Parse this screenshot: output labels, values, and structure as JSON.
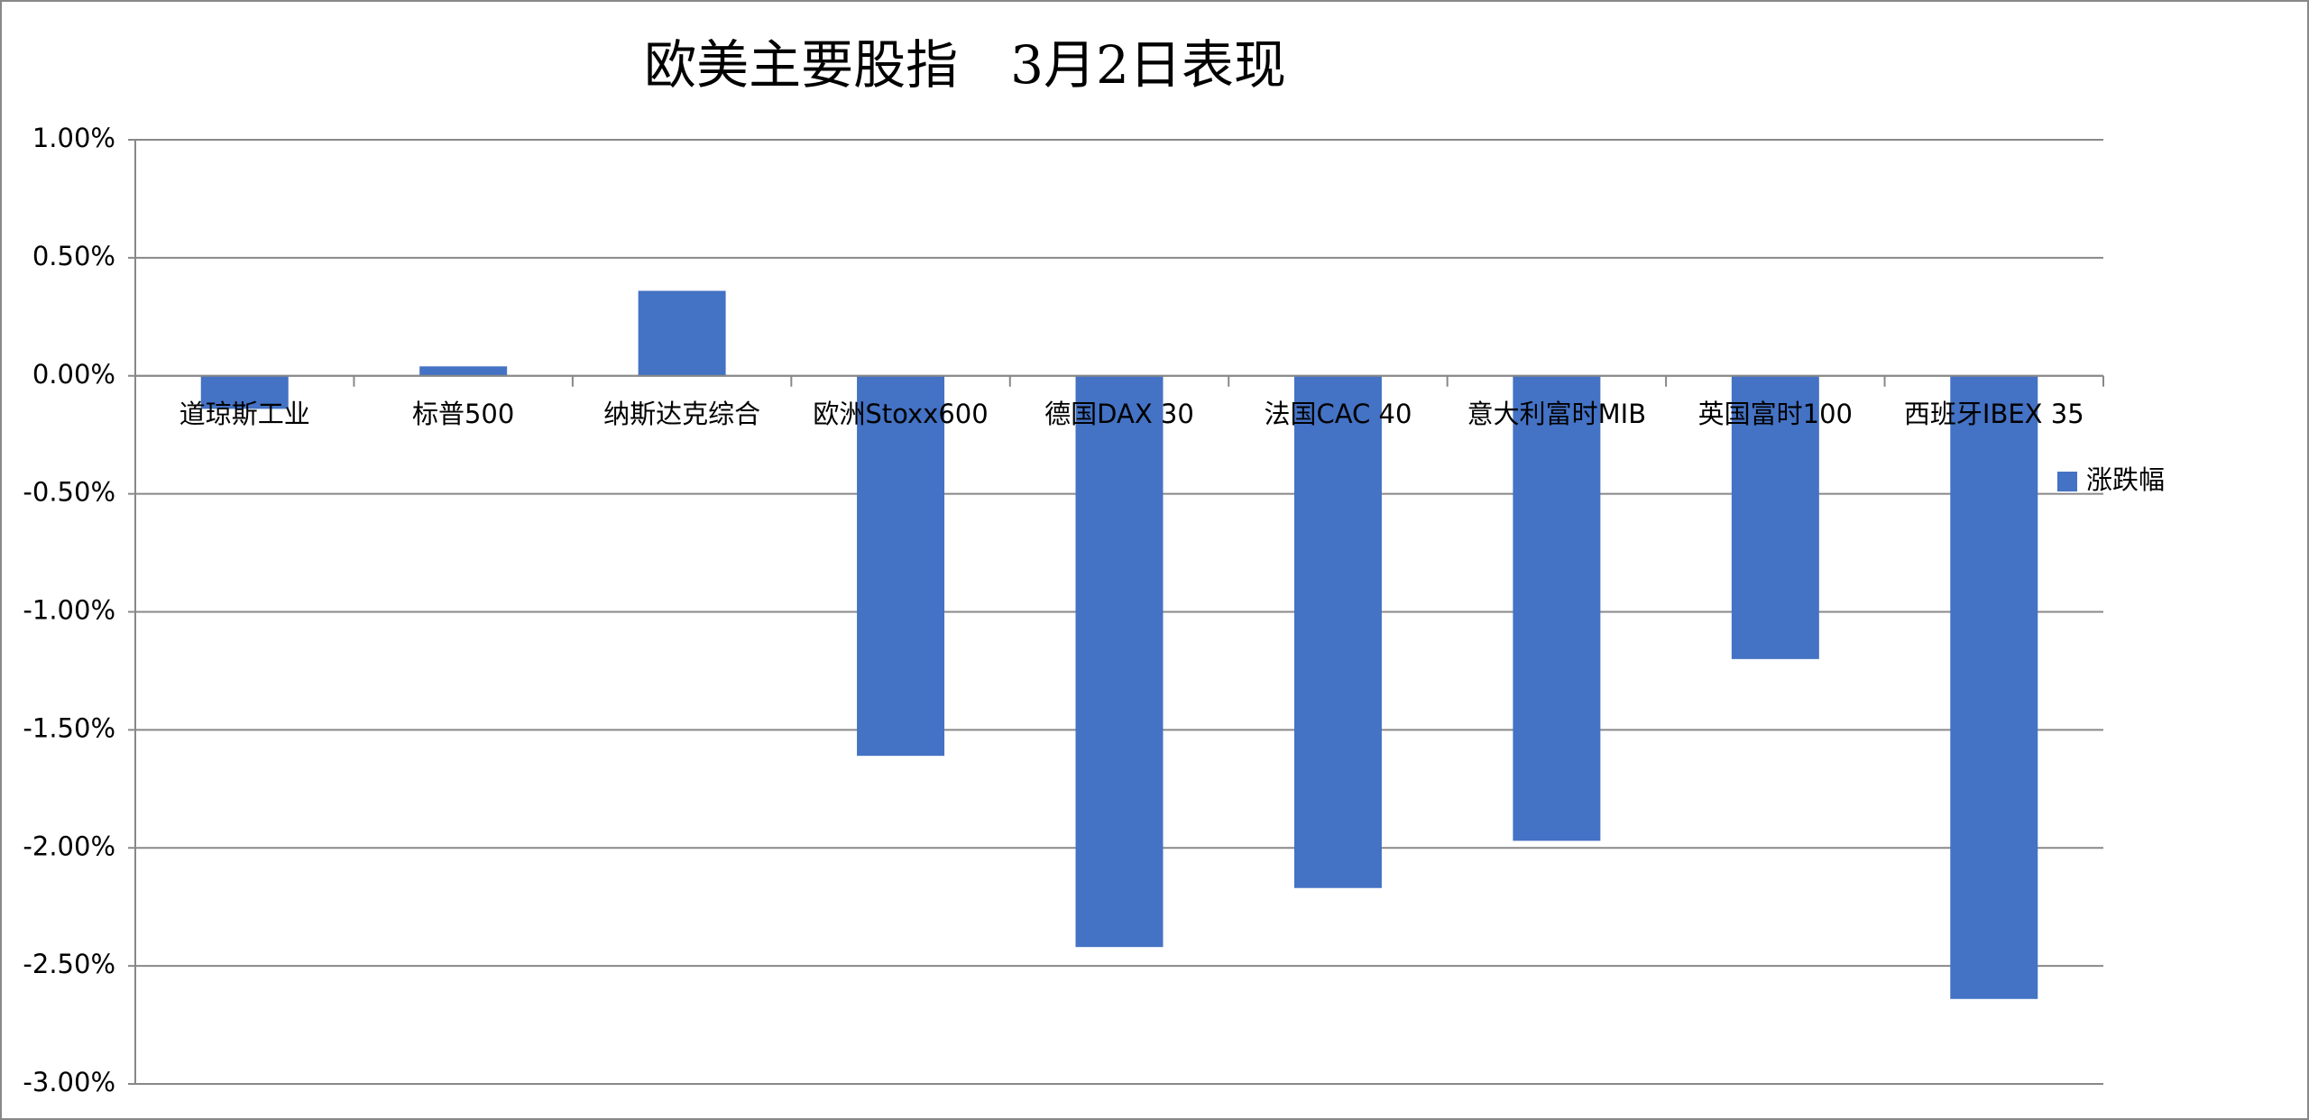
{
  "chart_data": {
    "type": "bar",
    "title": "欧美主要股指　3月2日表现",
    "categories": [
      "道琼斯工业",
      "标普500",
      "纳斯达克综合",
      "欧洲Stoxx600",
      "德国DAX 30",
      "法国CAC 40",
      "意大利富时MIB",
      "英国富时100",
      "西班牙IBEX 35"
    ],
    "series": [
      {
        "name": "涨跌幅",
        "color": "#4472c4",
        "values": [
          -0.14,
          0.04,
          0.36,
          -1.61,
          -2.42,
          -2.17,
          -1.97,
          -1.2,
          -2.64
        ]
      }
    ],
    "ylim": [
      -3,
      1
    ],
    "yticks": [
      {
        "value": -3,
        "label": "-3.00%"
      },
      {
        "value": -2.5,
        "label": "-2.50%"
      },
      {
        "value": -2,
        "label": "-2.00%"
      },
      {
        "value": -1.5,
        "label": "-1.50%"
      },
      {
        "value": -1,
        "label": "-1.00%"
      },
      {
        "value": -0.5,
        "label": "-0.50%"
      },
      {
        "value": 0,
        "label": "0.00%"
      },
      {
        "value": 0.5,
        "label": "0.50%"
      },
      {
        "value": 1,
        "label": "1.00%"
      }
    ],
    "grid": true,
    "legend": "right"
  }
}
